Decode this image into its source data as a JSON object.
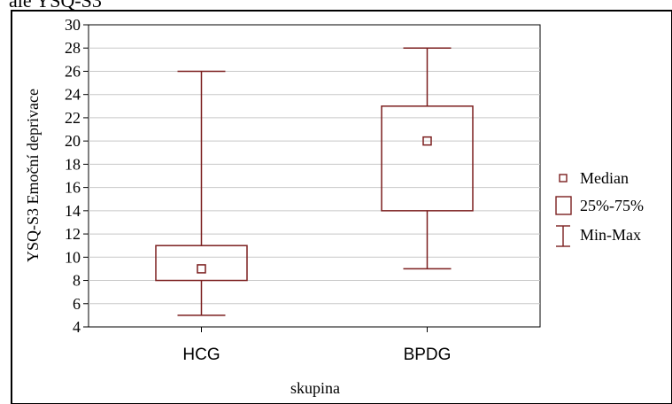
{
  "top_fragment": "ale YSQ-S3",
  "chart_data": {
    "type": "boxplot",
    "ylabel": "YSQ-S3  Emoční deprivace",
    "xlabel": "skupina",
    "ylim": [
      4,
      30
    ],
    "ytick_step": 2,
    "yticks": [
      4,
      6,
      8,
      10,
      12,
      14,
      16,
      18,
      20,
      22,
      24,
      26,
      28,
      30
    ],
    "grid": true,
    "categories": [
      "HCG",
      "BPDG"
    ],
    "boxes": [
      {
        "category": "HCG",
        "median": 9,
        "q1": 8,
        "q3": 11,
        "min": 5,
        "max": 26
      },
      {
        "category": "BPDG",
        "median": 20,
        "q1": 14,
        "q3": 23,
        "min": 9,
        "max": 28
      }
    ],
    "legend": {
      "position": "right",
      "items": [
        {
          "symbol": "median-square",
          "label": "Median"
        },
        {
          "symbol": "box",
          "label": "25%-75%"
        },
        {
          "symbol": "whisker",
          "label": "Min-Max"
        }
      ]
    },
    "colors": {
      "series": "#7b1e1e",
      "grid": "#c8c8c8",
      "frame": "#000000"
    }
  }
}
